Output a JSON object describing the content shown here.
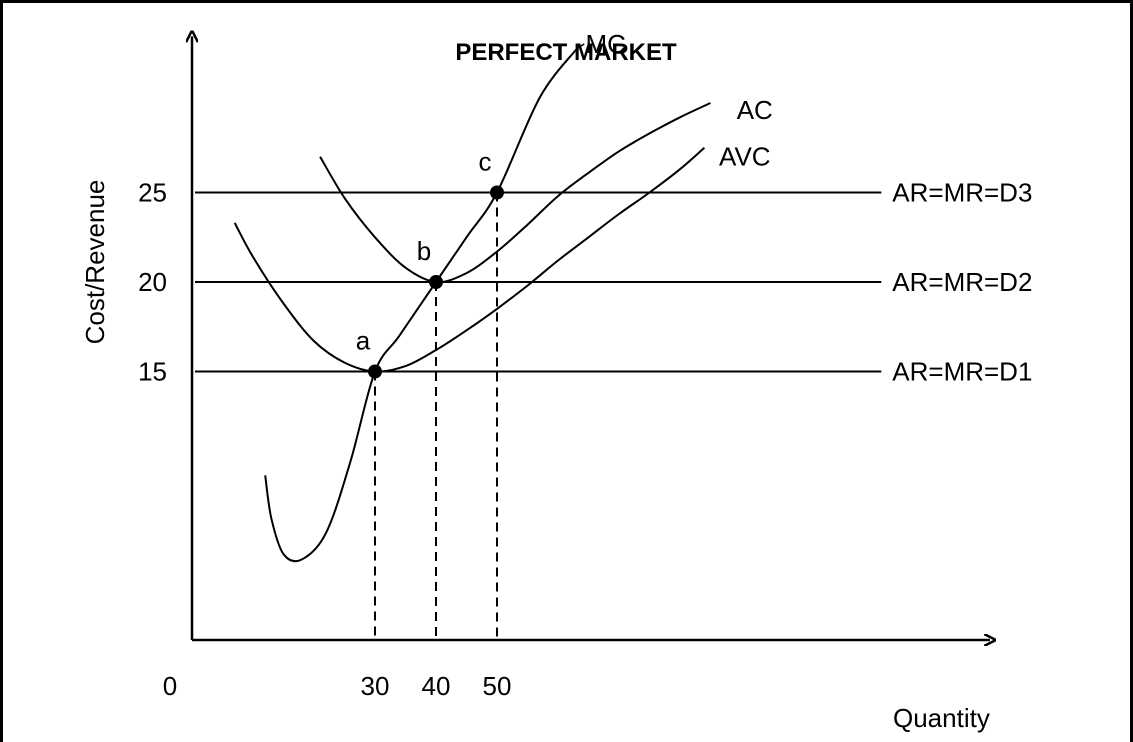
{
  "chart_data": {
    "type": "line",
    "title": "PERFECT MARKET",
    "xlabel": "Quantity",
    "ylabel": "Cost/Revenue",
    "origin_label": "0",
    "xlim": [
      0,
      130
    ],
    "ylim": [
      0,
      33.5
    ],
    "x_ticks": [
      30,
      40,
      50
    ],
    "y_ticks": [
      15,
      20,
      25
    ],
    "grid": false,
    "series": [
      {
        "name": "MC",
        "x": [
          12,
          13,
          15,
          18,
          22,
          26,
          30,
          34,
          40,
          45,
          50,
          57,
          63
        ],
        "y": [
          9.2,
          6.8,
          4.8,
          4.5,
          6.0,
          10.0,
          15.0,
          17.0,
          20.0,
          22.5,
          25.0,
          30.3,
          33.0
        ]
      },
      {
        "name": "AC",
        "x": [
          21,
          25,
          30,
          35,
          40,
          45,
          50,
          55,
          60,
          65,
          70,
          75,
          80,
          85
        ],
        "y": [
          27.0,
          24.7,
          22.5,
          20.8,
          20.0,
          20.5,
          21.7,
          23.2,
          24.8,
          26.1,
          27.3,
          28.3,
          29.2,
          30.0
        ]
      },
      {
        "name": "AVC",
        "x": [
          7,
          10,
          15,
          20,
          25,
          30,
          35,
          40,
          45,
          50,
          55,
          60,
          65,
          70,
          75,
          80,
          84
        ],
        "y": [
          23.3,
          21.4,
          18.8,
          16.7,
          15.5,
          15.0,
          15.3,
          16.2,
          17.3,
          18.5,
          19.8,
          21.2,
          22.5,
          23.8,
          25.0,
          26.3,
          27.5
        ]
      }
    ],
    "price_lines": [
      {
        "name": "AR=MR=D1",
        "y": 15
      },
      {
        "name": "AR=MR=D2",
        "y": 20
      },
      {
        "name": "AR=MR=D3",
        "y": 25
      }
    ],
    "points": [
      {
        "label": "a",
        "x": 30,
        "y": 15
      },
      {
        "label": "b",
        "x": 40,
        "y": 20
      },
      {
        "label": "c",
        "x": 50,
        "y": 25
      }
    ]
  }
}
